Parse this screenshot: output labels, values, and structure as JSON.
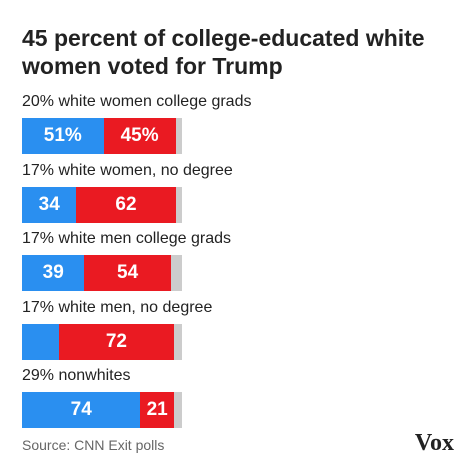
{
  "chart_data": {
    "type": "stacked-bar",
    "title": "45 percent of college-educated white women voted for Trump",
    "categories": [
      "20% white women college grads",
      "17% white women, no degree",
      "17% white men college grads",
      "17% white men, no degree",
      "29% nonwhites"
    ],
    "series": [
      {
        "color": "#2a8ff0",
        "values": [
          51,
          34,
          39,
          23,
          74
        ],
        "value_labels": [
          "51%",
          "34",
          "39",
          null,
          "74"
        ]
      },
      {
        "color": "#ea1a22",
        "values": [
          45,
          62,
          54,
          72,
          21
        ],
        "value_labels": [
          "45%",
          "62",
          "54",
          "72",
          "21"
        ]
      },
      {
        "color": "#cccccc",
        "values": [
          4,
          4,
          7,
          5,
          5
        ]
      }
    ],
    "xlim": [
      0,
      100
    ],
    "source": "Source: CNN Exit polls",
    "logo": "Vox"
  }
}
